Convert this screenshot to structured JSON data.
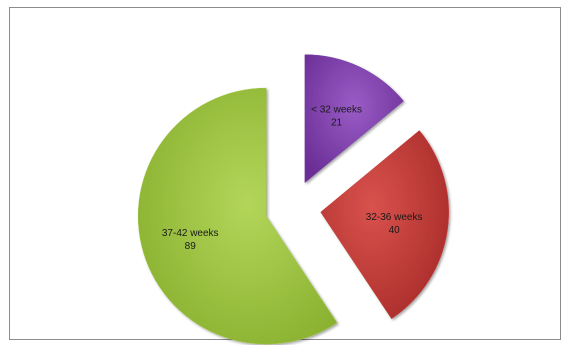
{
  "chart_data": {
    "type": "pie",
    "exploded": true,
    "categories": [
      "< 32 weeks",
      "32-36 weeks",
      "37-42 weeks"
    ],
    "values": [
      21,
      40,
      89
    ],
    "colors": [
      "#7d3fa8",
      "#c23b37",
      "#9cc43c"
    ],
    "data_labels": [
      "21",
      "40",
      "89"
    ],
    "title": "",
    "legend": "none"
  }
}
